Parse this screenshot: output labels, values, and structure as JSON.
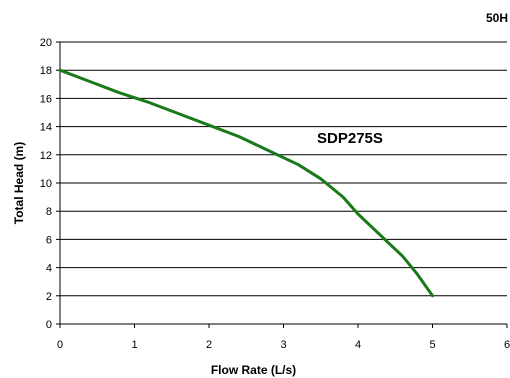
{
  "chart_data": {
    "type": "line",
    "corner_label": "50H",
    "xlabel": "Flow Rate (L/s)",
    "ylabel": "Total Head (m)",
    "xlim": [
      0,
      6
    ],
    "ylim": [
      0,
      20
    ],
    "x_ticks": [
      "0",
      "1",
      "2",
      "3",
      "4",
      "5",
      "6"
    ],
    "y_ticks": [
      "0",
      "2",
      "4",
      "6",
      "8",
      "10",
      "12",
      "14",
      "16",
      "18",
      "20"
    ],
    "grid": "horizontal",
    "series": [
      {
        "name": "SDP275S",
        "color": "#1a7a1a",
        "x": [
          0,
          0.4,
          0.8,
          1.2,
          1.6,
          2.0,
          2.4,
          2.8,
          3.2,
          3.5,
          3.8,
          4.0,
          4.3,
          4.6,
          4.8,
          5.0
        ],
        "y": [
          18,
          17.2,
          16.4,
          15.7,
          14.9,
          14.1,
          13.3,
          12.3,
          11.3,
          10.3,
          9.0,
          7.8,
          6.3,
          4.8,
          3.5,
          2.0
        ]
      }
    ],
    "annotations": [
      {
        "text": "SDP275S",
        "x": 3.45,
        "y": 12.85
      }
    ]
  }
}
